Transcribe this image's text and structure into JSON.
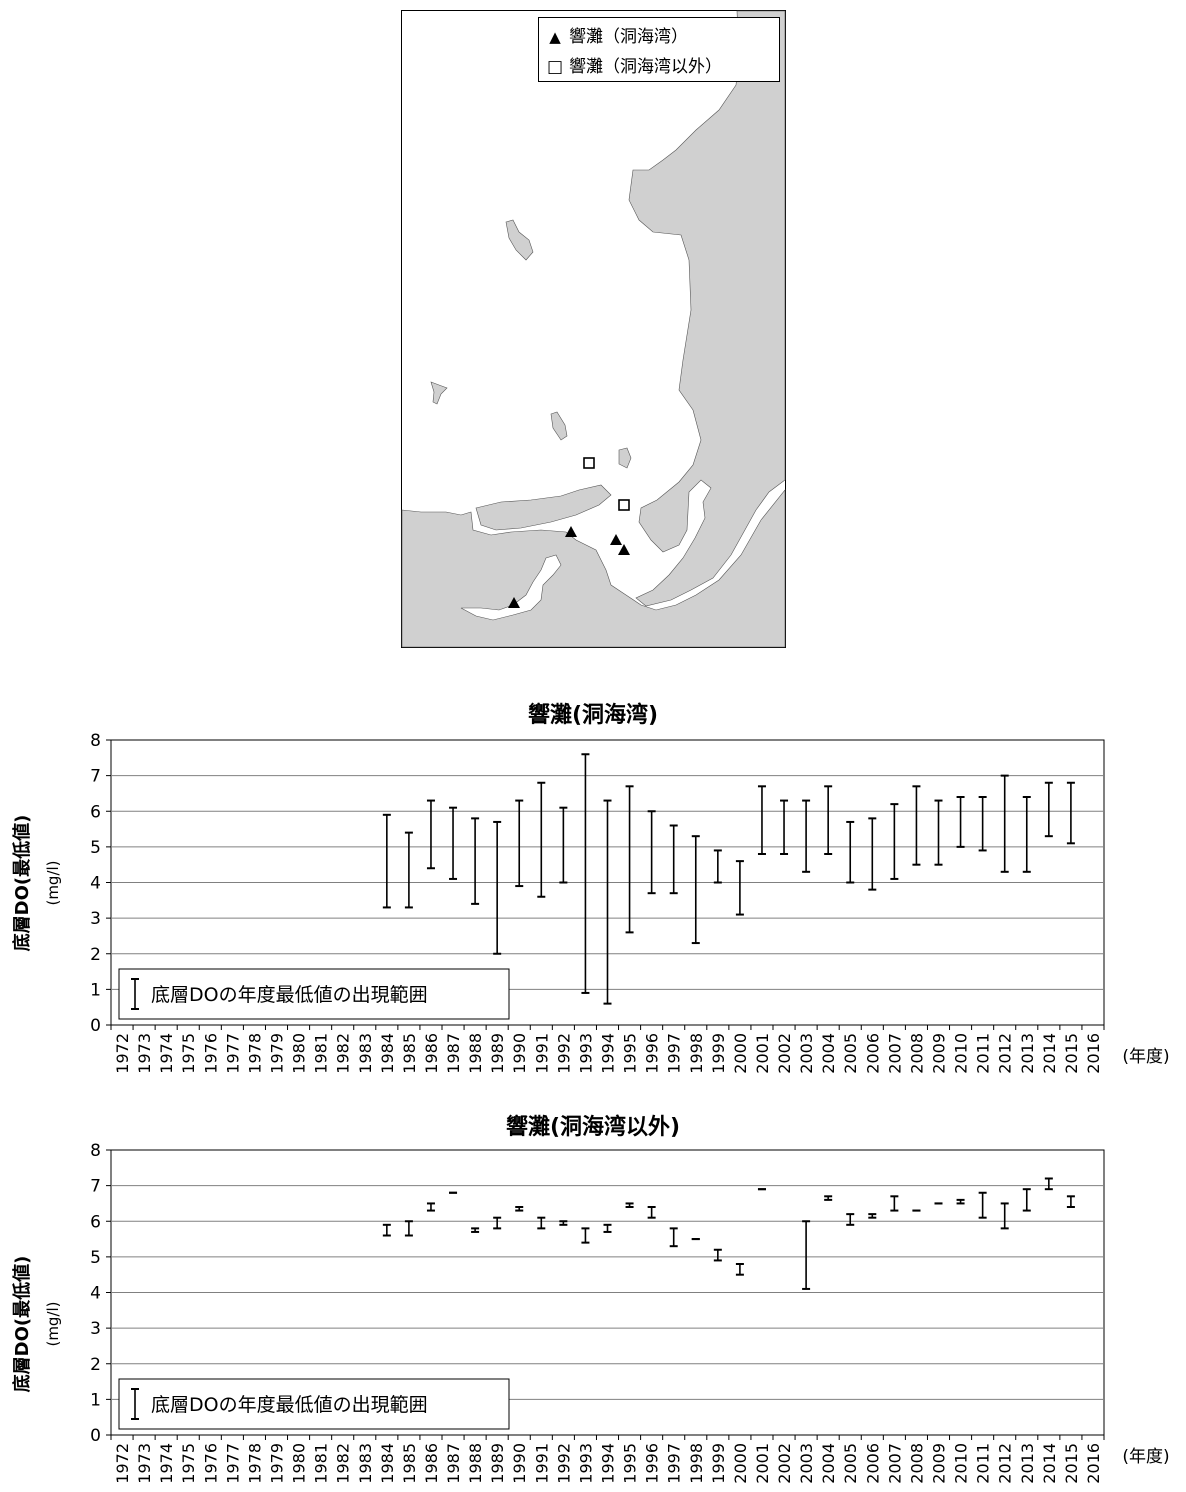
{
  "map": {
    "legend": [
      {
        "symbol": "▲",
        "label": "響灘（洞海湾）"
      },
      {
        "symbol": "□",
        "label": "響灘（洞海湾以外）"
      }
    ],
    "colors": {
      "land": "#d0d0d0",
      "sea": "#ffffff",
      "border": "#000000"
    }
  },
  "chart_data": [
    {
      "type": "range",
      "title": "響灘(洞海湾)",
      "ylabel": "底層DO(最低値)",
      "yunit": "(mg/l)",
      "xunit": "(年度)",
      "ylim": [
        0,
        8
      ],
      "yticks": [
        "0",
        "1",
        "2",
        "3",
        "4",
        "5",
        "6",
        "7",
        "8"
      ],
      "grid": true,
      "legend_label": "底層DOの年度最低値の出現範囲",
      "legend_position": "bottom-left",
      "categories": [
        "1972",
        "1973",
        "1974",
        "1975",
        "1976",
        "1977",
        "1978",
        "1979",
        "1980",
        "1981",
        "1982",
        "1983",
        "1984",
        "1985",
        "1986",
        "1987",
        "1988",
        "1989",
        "1990",
        "1991",
        "1992",
        "1993",
        "1994",
        "1995",
        "1996",
        "1997",
        "1998",
        "1999",
        "2000",
        "2001",
        "2002",
        "2003",
        "2004",
        "2005",
        "2006",
        "2007",
        "2008",
        "2009",
        "2010",
        "2011",
        "2012",
        "2013",
        "2014",
        "2015",
        "2016"
      ],
      "ranges": [
        null,
        null,
        null,
        null,
        null,
        null,
        null,
        null,
        null,
        null,
        null,
        null,
        [
          3.3,
          5.9
        ],
        [
          3.3,
          5.4
        ],
        [
          4.4,
          6.3
        ],
        [
          4.1,
          6.1
        ],
        [
          3.4,
          5.8
        ],
        [
          2.0,
          5.7
        ],
        [
          3.9,
          6.3
        ],
        [
          3.6,
          6.8
        ],
        [
          4.0,
          6.1
        ],
        [
          0.9,
          7.6
        ],
        [
          0.6,
          6.3
        ],
        [
          2.6,
          6.7
        ],
        [
          3.7,
          6.0
        ],
        [
          3.7,
          5.6
        ],
        [
          2.3,
          5.3
        ],
        [
          4.0,
          4.9
        ],
        [
          3.1,
          4.6
        ],
        [
          4.8,
          6.7
        ],
        [
          4.8,
          6.3
        ],
        [
          4.3,
          6.3
        ],
        [
          4.8,
          6.7
        ],
        [
          4.0,
          5.7
        ],
        [
          3.8,
          5.8
        ],
        [
          4.1,
          6.2
        ],
        [
          4.5,
          6.7
        ],
        [
          4.5,
          6.3
        ],
        [
          5.0,
          6.4
        ],
        [
          4.9,
          6.4
        ],
        [
          4.3,
          7.0
        ],
        [
          4.3,
          6.4
        ],
        [
          5.3,
          6.8
        ],
        [
          5.1,
          6.8
        ]
      ]
    },
    {
      "type": "range",
      "title": "響灘(洞海湾以外)",
      "ylabel": "底層DO(最低値)",
      "yunit": "(mg/l)",
      "xunit": "(年度)",
      "ylim": [
        0,
        8
      ],
      "yticks": [
        "0",
        "1",
        "2",
        "3",
        "4",
        "5",
        "6",
        "7",
        "8"
      ],
      "grid": true,
      "legend_label": "底層DOの年度最低値の出現範囲",
      "legend_position": "bottom-left",
      "categories": [
        "1972",
        "1973",
        "1974",
        "1975",
        "1976",
        "1977",
        "1978",
        "1979",
        "1980",
        "1981",
        "1982",
        "1983",
        "1984",
        "1985",
        "1986",
        "1987",
        "1988",
        "1989",
        "1990",
        "1991",
        "1992",
        "1993",
        "1994",
        "1995",
        "1996",
        "1997",
        "1998",
        "1999",
        "2000",
        "2001",
        "2002",
        "2003",
        "2004",
        "2005",
        "2006",
        "2007",
        "2008",
        "2009",
        "2010",
        "2011",
        "2012",
        "2013",
        "2014",
        "2015",
        "2016"
      ],
      "ranges": [
        null,
        null,
        null,
        null,
        null,
        null,
        null,
        null,
        null,
        null,
        null,
        null,
        [
          5.6,
          5.9
        ],
        [
          5.6,
          6.0
        ],
        [
          6.3,
          6.5
        ],
        [
          6.8,
          6.8
        ],
        [
          5.7,
          5.8
        ],
        [
          5.8,
          6.1
        ],
        [
          6.3,
          6.4
        ],
        [
          5.8,
          6.1
        ],
        [
          5.9,
          6.0
        ],
        [
          5.4,
          5.8
        ],
        [
          5.7,
          5.9
        ],
        [
          6.4,
          6.5
        ],
        [
          6.1,
          6.4
        ],
        [
          5.3,
          5.8
        ],
        [
          5.5,
          5.5
        ],
        [
          4.9,
          5.2
        ],
        [
          4.5,
          4.8
        ],
        [
          6.9,
          6.9
        ],
        null,
        [
          4.1,
          6.0
        ],
        [
          6.6,
          6.7
        ],
        [
          5.9,
          6.2
        ],
        [
          6.1,
          6.2
        ],
        [
          6.3,
          6.7
        ],
        [
          6.3,
          6.3
        ],
        [
          6.5,
          6.5
        ],
        [
          6.5,
          6.6
        ],
        [
          6.1,
          6.8
        ],
        [
          5.8,
          6.5
        ],
        [
          6.3,
          6.9
        ],
        [
          6.9,
          7.2
        ],
        [
          6.4,
          6.7
        ]
      ]
    }
  ]
}
